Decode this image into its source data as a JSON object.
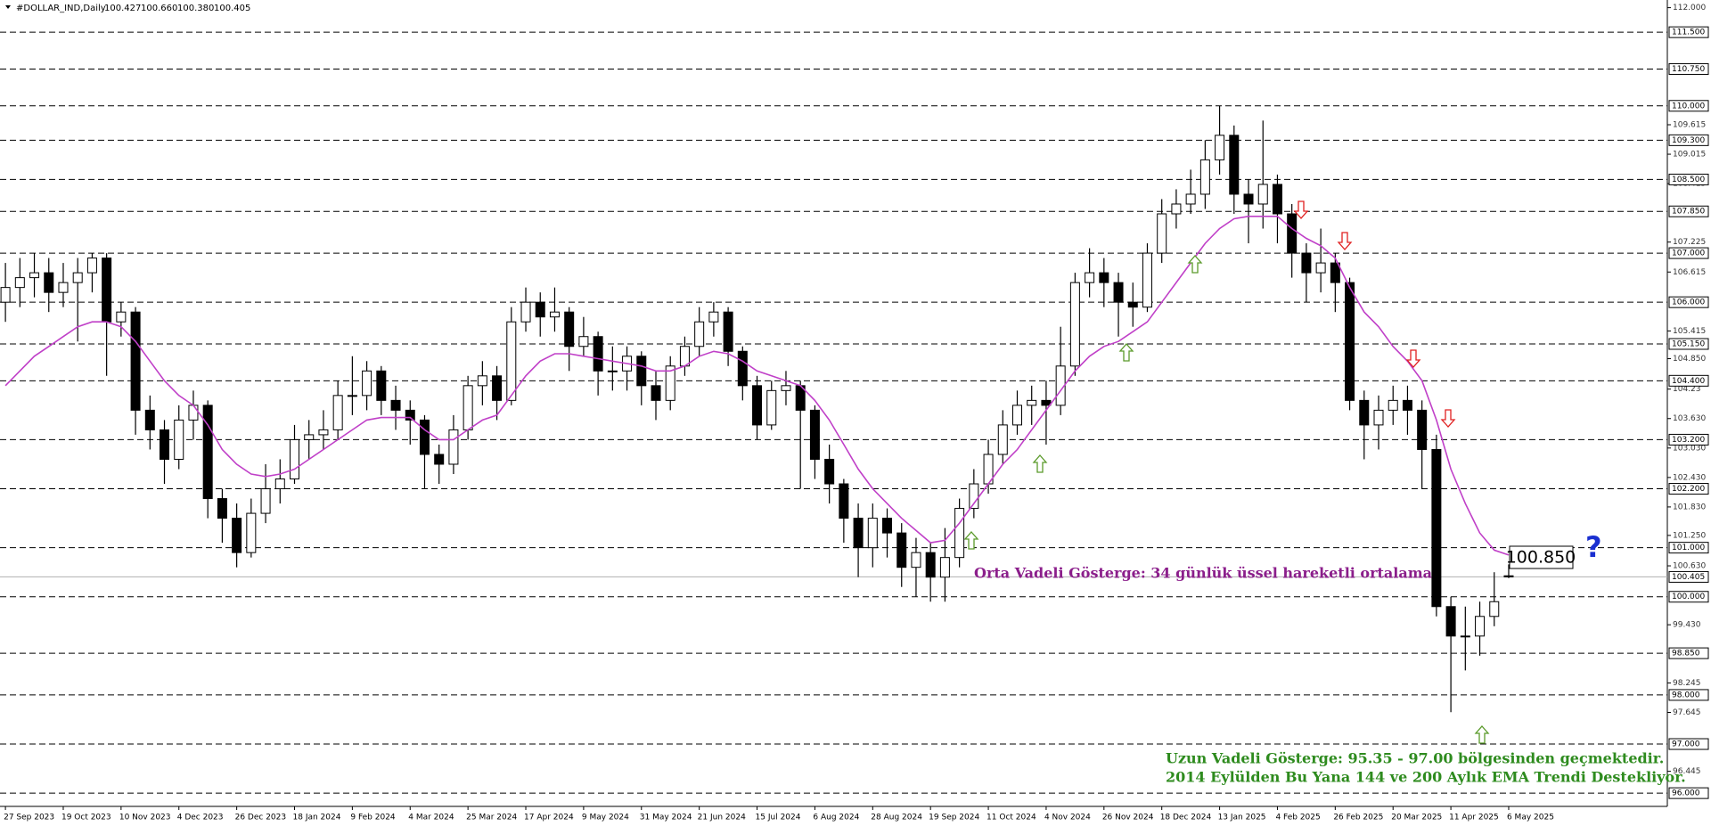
{
  "chart_data": {
    "type": "candlestick",
    "title": "#DOLLAR_IND,Daily",
    "header_values": [
      "100.427",
      "100.660",
      "100.380",
      "100.405"
    ],
    "categories": [
      "27 Sep 2023",
      null,
      null,
      null,
      "19 Oct 2023",
      null,
      null,
      null,
      "10 Nov 2023",
      null,
      null,
      null,
      "4 Dec 2023",
      null,
      null,
      null,
      "26 Dec 2023",
      null,
      null,
      null,
      "18 Jan 2024",
      null,
      null,
      null,
      "9 Feb 2024",
      null,
      null,
      null,
      "4 Mar 2024",
      null,
      null,
      null,
      "25 Mar 2024",
      null,
      null,
      null,
      "17 Apr 2024",
      null,
      null,
      null,
      "9 May 2024",
      null,
      null,
      null,
      "31 May 2024",
      null,
      null,
      null,
      "21 Jun 2024",
      null,
      null,
      null,
      "15 Jul 2024",
      null,
      null,
      null,
      "6 Aug 2024",
      null,
      null,
      null,
      "28 Aug 2024",
      null,
      null,
      null,
      "19 Sep 2024",
      null,
      null,
      null,
      "11 Oct 2024",
      null,
      null,
      null,
      "4 Nov 2024",
      null,
      null,
      null,
      "26 Nov 2024",
      null,
      null,
      null,
      "18 Dec 2024",
      null,
      null,
      null,
      "13 Jan 2025",
      null,
      null,
      null,
      "4 Feb 2025",
      null,
      null,
      null,
      "26 Feb 2025",
      null,
      null,
      null,
      "20 Mar 2025",
      null,
      null,
      null,
      "11 Apr 2025",
      null,
      null,
      null,
      "6 May 2025"
    ],
    "open": [
      106.0,
      106.3,
      106.5,
      106.6,
      106.2,
      106.4,
      106.6,
      106.9,
      105.6,
      105.8,
      103.8,
      103.4,
      102.8,
      103.6,
      103.9,
      102.0,
      101.6,
      100.9,
      101.7,
      102.2,
      102.4,
      103.2,
      103.3,
      103.4,
      104.1,
      104.1,
      104.6,
      104.0,
      103.8,
      103.6,
      102.9,
      102.7,
      103.4,
      104.3,
      104.5,
      104.0,
      105.6,
      106.0,
      105.7,
      105.8,
      105.1,
      105.3,
      104.6,
      104.6,
      104.9,
      104.3,
      104.0,
      104.7,
      105.1,
      105.6,
      105.8,
      105.0,
      104.3,
      103.5,
      104.2,
      104.3,
      103.8,
      102.8,
      102.3,
      101.6,
      101.0,
      101.6,
      101.3,
      100.6,
      100.9,
      100.4,
      100.8,
      101.8,
      102.3,
      102.9,
      103.5,
      103.9,
      104.0,
      103.9,
      104.7,
      106.4,
      106.6,
      106.4,
      106.0,
      105.9,
      107.0,
      107.8,
      108.0,
      108.2,
      108.9,
      109.4,
      108.2,
      108.0,
      108.4,
      107.8,
      107.0,
      106.6,
      106.8,
      106.4,
      104.0,
      103.5,
      103.8,
      104.0,
      103.8,
      103.0,
      99.8,
      99.2,
      99.2,
      99.6,
      100.427
    ],
    "high": [
      106.8,
      106.9,
      107.0,
      106.9,
      106.8,
      106.9,
      107.0,
      107.0,
      106.0,
      105.9,
      104.1,
      103.6,
      103.9,
      104.2,
      104.0,
      102.2,
      101.9,
      102.0,
      102.7,
      102.8,
      103.5,
      103.6,
      103.8,
      104.4,
      104.9,
      104.8,
      104.7,
      104.3,
      104.0,
      103.7,
      103.1,
      103.7,
      104.5,
      104.8,
      104.7,
      105.9,
      106.3,
      106.2,
      106.3,
      105.9,
      105.7,
      105.4,
      105.1,
      105.1,
      105.0,
      104.6,
      104.9,
      105.3,
      105.9,
      106.0,
      105.9,
      105.1,
      104.5,
      104.4,
      104.6,
      104.4,
      103.9,
      103.1,
      102.4,
      101.9,
      101.9,
      101.8,
      101.5,
      101.2,
      101.1,
      101.4,
      102.0,
      102.6,
      103.2,
      103.8,
      104.2,
      104.3,
      104.4,
      105.5,
      106.6,
      107.1,
      106.9,
      106.6,
      106.4,
      107.2,
      108.1,
      108.3,
      108.7,
      109.3,
      110.0,
      109.6,
      108.5,
      109.7,
      108.6,
      108.0,
      107.2,
      107.5,
      107.0,
      106.5,
      104.2,
      104.1,
      104.3,
      104.3,
      104.0,
      103.3,
      100.0,
      99.8,
      99.9,
      100.5,
      100.66
    ],
    "low": [
      105.6,
      105.9,
      106.1,
      105.8,
      105.9,
      105.2,
      106.2,
      104.5,
      105.3,
      103.3,
      103.0,
      102.3,
      102.6,
      103.2,
      101.6,
      101.1,
      100.6,
      100.8,
      101.5,
      101.9,
      102.3,
      102.8,
      103.0,
      103.2,
      103.7,
      103.8,
      103.7,
      103.4,
      103.1,
      102.2,
      102.3,
      102.5,
      103.2,
      103.9,
      103.6,
      103.9,
      105.4,
      105.3,
      105.4,
      104.6,
      104.9,
      104.1,
      104.2,
      104.2,
      103.9,
      103.6,
      103.8,
      104.5,
      104.9,
      105.3,
      104.7,
      104.0,
      103.2,
      103.4,
      103.9,
      102.2,
      102.4,
      101.9,
      101.1,
      100.4,
      100.6,
      100.8,
      100.2,
      100.0,
      99.9,
      99.9,
      100.6,
      101.6,
      102.1,
      102.7,
      103.3,
      103.5,
      103.1,
      103.7,
      104.5,
      106.1,
      105.9,
      105.3,
      105.5,
      105.8,
      106.8,
      107.5,
      107.8,
      107.9,
      108.6,
      107.8,
      107.2,
      107.5,
      107.2,
      106.5,
      106.0,
      106.2,
      105.8,
      103.8,
      102.8,
      103.0,
      103.5,
      103.3,
      102.2,
      99.6,
      97.65,
      98.5,
      98.8,
      99.4,
      100.38
    ],
    "close": [
      106.3,
      106.5,
      106.6,
      106.2,
      106.4,
      106.6,
      106.9,
      105.6,
      105.8,
      103.8,
      103.4,
      102.8,
      103.6,
      103.9,
      102.0,
      101.6,
      100.9,
      101.7,
      102.2,
      102.4,
      103.2,
      103.3,
      103.4,
      104.1,
      104.1,
      104.6,
      104.0,
      103.8,
      103.6,
      102.9,
      102.7,
      103.4,
      104.3,
      104.5,
      104.0,
      105.6,
      106.0,
      105.7,
      105.8,
      105.1,
      105.3,
      104.6,
      104.6,
      104.9,
      104.3,
      104.0,
      104.7,
      105.1,
      105.6,
      105.8,
      105.0,
      104.3,
      103.5,
      104.2,
      104.3,
      103.8,
      102.8,
      102.3,
      101.6,
      101.0,
      101.6,
      101.3,
      100.6,
      100.9,
      100.4,
      100.8,
      101.8,
      102.3,
      102.9,
      103.5,
      103.9,
      104.0,
      103.9,
      104.7,
      106.4,
      106.6,
      106.4,
      106.0,
      105.9,
      107.0,
      107.8,
      108.0,
      108.2,
      108.9,
      109.4,
      108.2,
      108.0,
      108.4,
      107.8,
      107.0,
      106.6,
      106.8,
      106.4,
      104.0,
      103.5,
      103.8,
      104.0,
      103.8,
      103.0,
      99.8,
      99.2,
      99.2,
      99.6,
      99.9,
      100.405
    ],
    "up_color": "#ffffff",
    "down_color": "#000000",
    "ema": {
      "color": "#c040c8",
      "values": [
        104.3,
        104.6,
        104.9,
        105.1,
        105.3,
        105.5,
        105.6,
        105.6,
        105.5,
        105.2,
        104.8,
        104.4,
        104.1,
        103.9,
        103.5,
        103.0,
        102.7,
        102.5,
        102.45,
        102.5,
        102.6,
        102.8,
        103.0,
        103.2,
        103.4,
        103.6,
        103.65,
        103.65,
        103.65,
        103.4,
        103.2,
        103.2,
        103.4,
        103.6,
        103.7,
        104.1,
        104.5,
        104.8,
        104.95,
        104.95,
        104.9,
        104.85,
        104.8,
        104.75,
        104.7,
        104.6,
        104.6,
        104.7,
        104.9,
        105.0,
        104.95,
        104.8,
        104.6,
        104.5,
        104.4,
        104.3,
        104.0,
        103.6,
        103.1,
        102.6,
        102.2,
        101.9,
        101.6,
        101.35,
        101.1,
        101.15,
        101.5,
        101.9,
        102.3,
        102.7,
        103.0,
        103.4,
        103.8,
        104.2,
        104.6,
        104.9,
        105.1,
        105.2,
        105.4,
        105.6,
        106.0,
        106.4,
        106.8,
        107.2,
        107.5,
        107.7,
        107.75,
        107.75,
        107.75,
        107.5,
        107.3,
        107.15,
        106.9,
        106.3,
        105.8,
        105.5,
        105.1,
        104.8,
        104.4,
        103.6,
        102.6,
        101.9,
        101.3,
        100.95,
        100.85
      ]
    },
    "ylim": [
      95.73,
      112.156
    ],
    "yticks": [
      {
        "value": 112,
        "label": "112.000"
      },
      109.615,
      109.015,
      108.415,
      107.225,
      106.615,
      105.415,
      {
        "value": 104.85,
        "label": "104.850"
      },
      104.23,
      {
        "value": 103.63,
        "label": "103.630"
      },
      {
        "value": 103.03,
        "label": "103.030"
      },
      {
        "value": 102.43,
        "label": "102.430"
      },
      {
        "value": 101.83,
        "label": "101.830"
      },
      {
        "value": 101.25,
        "label": "101.250"
      },
      {
        "value": 100.63,
        "label": "100.630"
      },
      {
        "value": 99.43,
        "label": "99.430"
      },
      98.245,
      97.645,
      96.445
    ],
    "levels": [
      {
        "value": 111.5,
        "label": "111.500"
      },
      {
        "value": 110.75,
        "label": "110.750"
      },
      {
        "value": 110,
        "label": "110.000"
      },
      {
        "value": 109.3,
        "label": "109.300"
      },
      {
        "value": 108.5,
        "label": "108.500"
      },
      {
        "value": 107.85,
        "label": "107.850"
      },
      {
        "value": 107,
        "label": "107.000"
      },
      {
        "value": 106,
        "label": "106.000"
      },
      {
        "value": 105.15,
        "label": "105.150"
      },
      {
        "value": 104.4,
        "label": "104.400"
      },
      {
        "value": 103.2,
        "label": "103.200"
      },
      {
        "value": 102.2,
        "label": "102.200"
      },
      {
        "value": 101,
        "label": "101.000"
      },
      {
        "value": 100,
        "label": "100.000"
      },
      {
        "value": 98.85,
        "label": "98.850"
      },
      {
        "value": 98,
        "label": "98.000"
      },
      {
        "value": 97,
        "label": "97.000"
      },
      {
        "value": 96,
        "label": "96.000"
      }
    ],
    "last_price": 100.405,
    "annotations": [
      "Orta Vadeli Gösterge: 34 günlük üssel hareketli ortalama",
      "100.850",
      "?",
      "Uzun Vadeli Gösterge: 95.35 - 97.00 bölgesinden geçmektedir.",
      "2014 Eylülden Bu Yana 144 ve 200 Aylık EMA Trendi Destekliyor."
    ]
  }
}
